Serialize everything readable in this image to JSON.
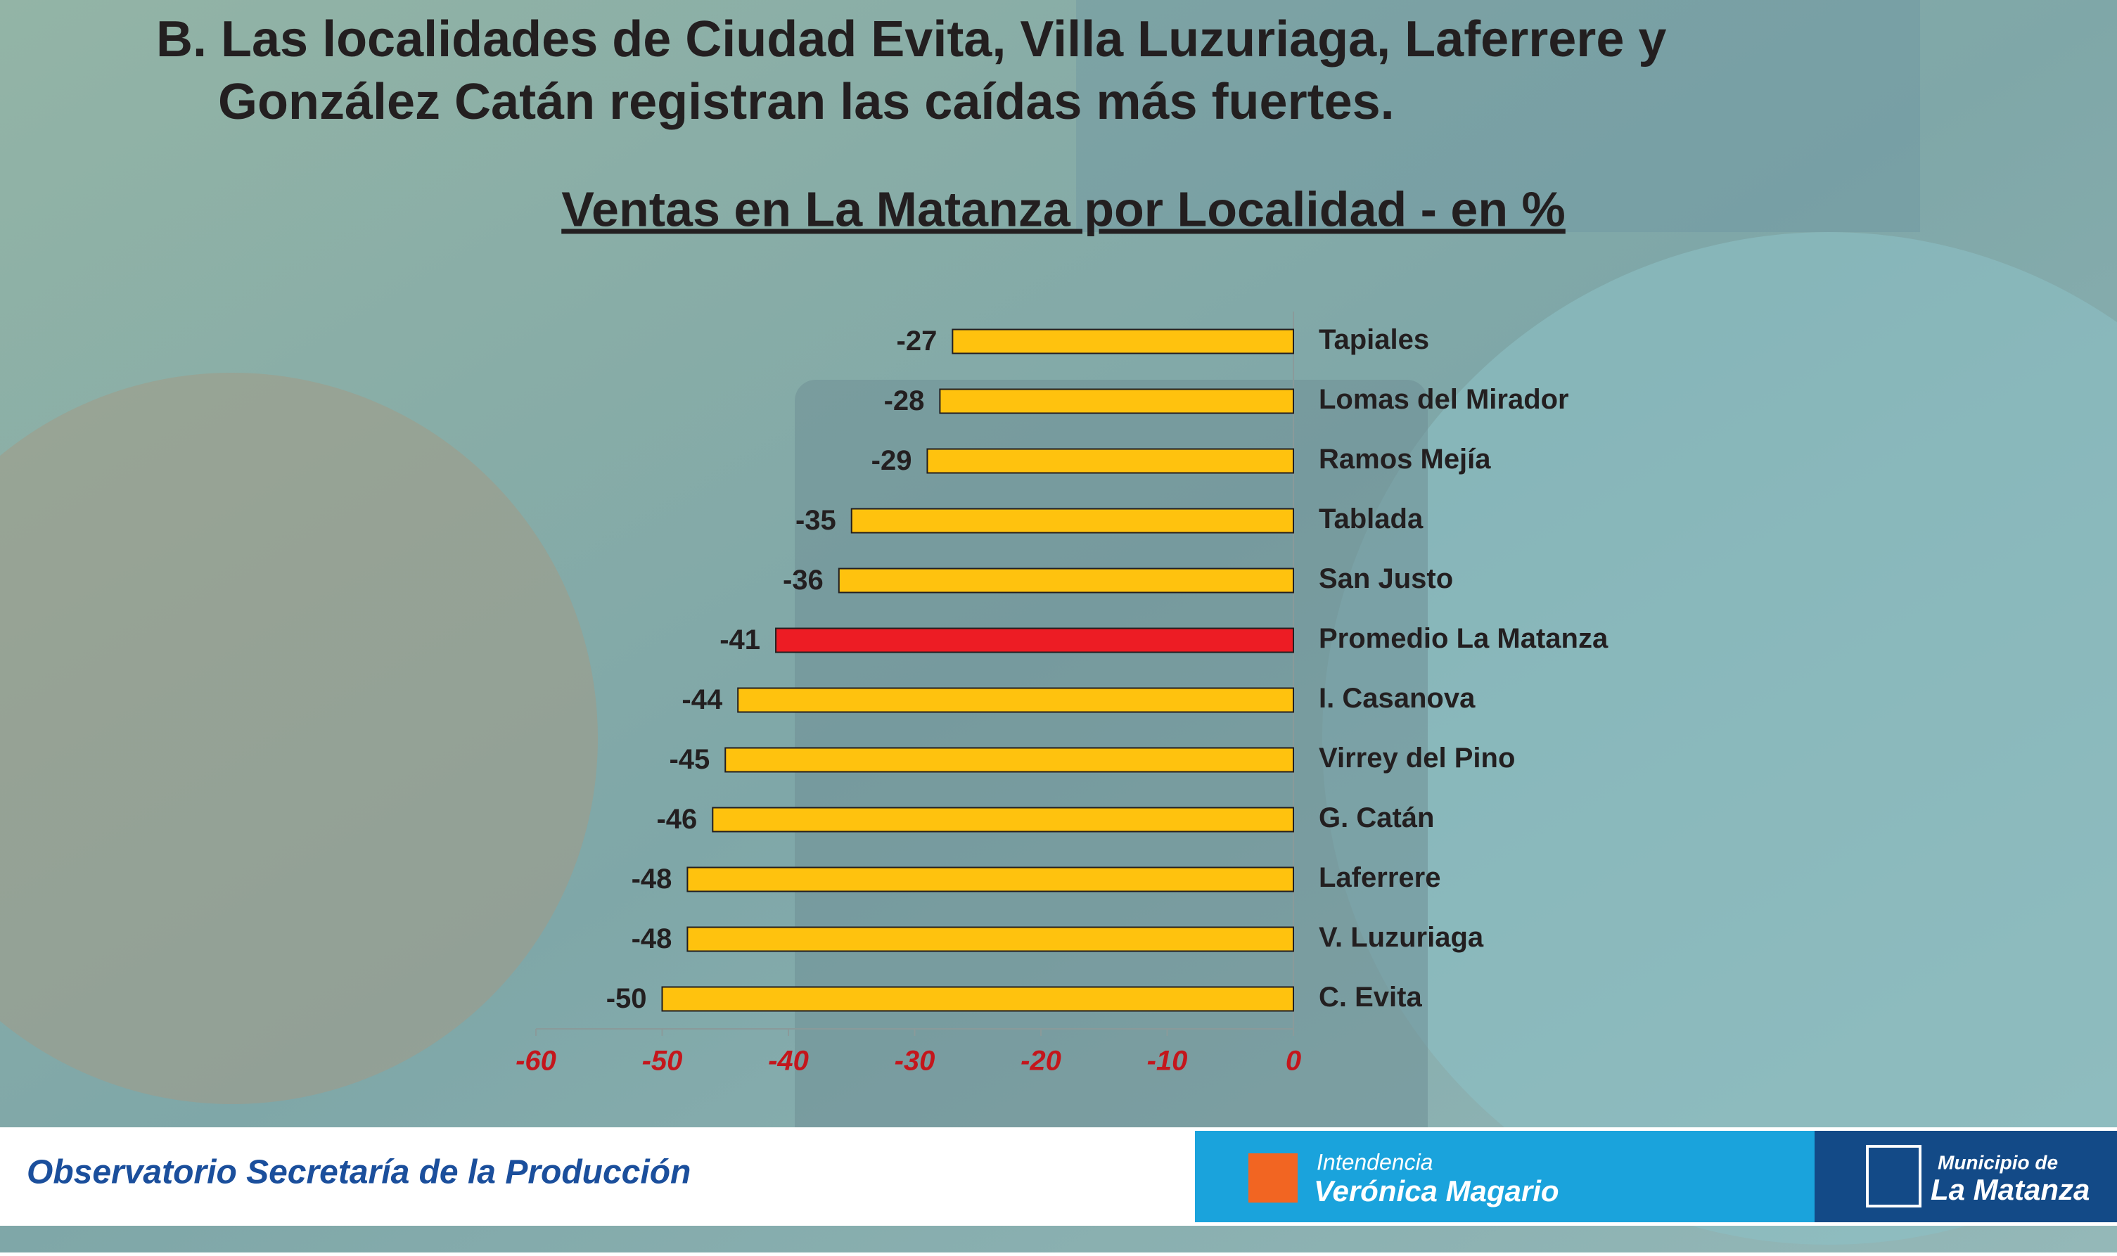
{
  "header": {
    "title": [
      "B. Las localidades de Ciudad Evita, Villa Luzuriaga, Laferrere y",
      "González Catán registran las caídas más fuertes."
    ]
  },
  "chart_data": {
    "type": "barh",
    "title": "Ventas en La Matanza por Localidad - en %",
    "categories": [
      "Tapiales",
      "Lomas del Mirador",
      "Ramos Mejía",
      "Tablada",
      "San Justo",
      "Promedio La Matanza",
      "I. Casanova",
      "Virrey del Pino",
      "G. Catán",
      "Laferrere",
      "V. Luzuriaga",
      "C. Evita"
    ],
    "values": [
      -27,
      -28,
      -29,
      -35,
      -36,
      -41,
      -44,
      -45,
      -46,
      -48,
      -48,
      -50
    ],
    "colors": [
      "#ffc20e",
      "#ffc20e",
      "#ffc20e",
      "#ffc20e",
      "#ffc20e",
      "#ed1c24",
      "#ffc20e",
      "#ffc20e",
      "#ffc20e",
      "#ffc20e",
      "#ffc20e",
      "#ffc20e"
    ],
    "xlim": [
      -60,
      0
    ],
    "xticks": [
      -60,
      -50,
      -40,
      -30,
      -20,
      -10,
      0
    ],
    "tick_color": "#c4161c"
  },
  "footer": {
    "text": "Observatorio Secretaría de la Producción",
    "logo1": [
      "Intendencia",
      "Verónica Magario"
    ],
    "logo2": [
      "Municipio de",
      "La Matanza"
    ]
  }
}
